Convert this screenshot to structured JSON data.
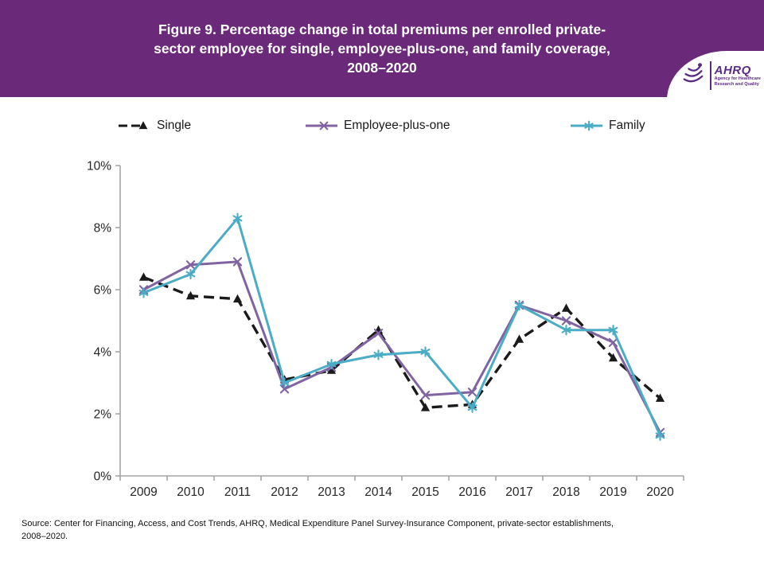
{
  "header": {
    "title_lines": [
      "Figure 9. Percentage change in total premiums per enrolled private-",
      "sector employee for single, employee-plus-one, and family coverage,",
      "2008–2020"
    ],
    "logo": {
      "acronym": "AHRQ",
      "tagline_line1": "Agency for Healthcare",
      "tagline_line2": "Research and Quality"
    }
  },
  "source_note": "Source: Center for Financing, Access, and Cost Trends, AHRQ, Medical Expenditure Panel Survey-Insurance Component, private-sector establishments,\n2008–2020.",
  "colors": {
    "header_purple": "#6a2a79",
    "single": "#1a1a1a",
    "employee_plus_one": "#8064a2",
    "family": "#4bacc6",
    "axis_gray": "#a6a6a6",
    "tick_label": "#262626"
  },
  "chart_data": {
    "type": "line",
    "categories": [
      "2009",
      "2010",
      "2011",
      "2012",
      "2013",
      "2014",
      "2015",
      "2016",
      "2017",
      "2018",
      "2019",
      "2020"
    ],
    "series": [
      {
        "name": "Single",
        "color": "#1a1a1a",
        "dash": "dashed",
        "marker": "triangle",
        "values": [
          6.4,
          5.8,
          5.7,
          3.1,
          3.4,
          4.7,
          2.2,
          2.3,
          4.4,
          5.4,
          3.8,
          2.5
        ]
      },
      {
        "name": "Employee-plus-one",
        "color": "#8064a2",
        "dash": "solid",
        "marker": "x",
        "values": [
          6.0,
          6.8,
          6.9,
          2.8,
          3.5,
          4.6,
          2.6,
          2.7,
          5.5,
          5.0,
          4.3,
          1.4
        ]
      },
      {
        "name": "Family",
        "color": "#4bacc6",
        "dash": "solid",
        "marker": "asterisk",
        "values": [
          5.9,
          6.5,
          8.3,
          3.0,
          3.6,
          3.9,
          4.0,
          2.2,
          5.5,
          4.7,
          4.7,
          1.3
        ]
      }
    ],
    "ylim": [
      0,
      10
    ],
    "ytick_step": 2,
    "ytick_suffix": "%",
    "xlabel": "",
    "ylabel": "",
    "grid": false,
    "legend_position": "top"
  }
}
